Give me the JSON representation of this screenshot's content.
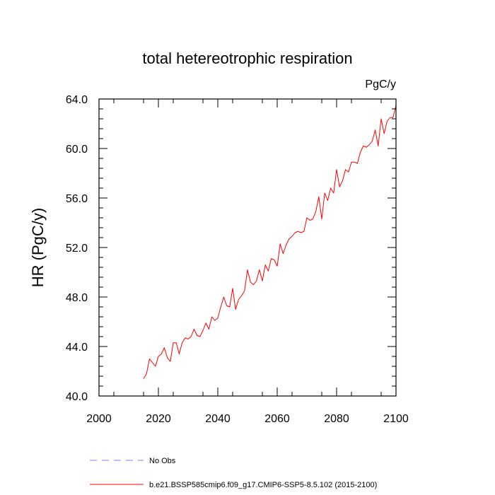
{
  "chart_data": {
    "type": "line",
    "title": "total hetereotrophic respiration",
    "units": "PgC/y",
    "xlabel": "",
    "ylabel": "HR  (PgC/y)",
    "xlim": [
      2000,
      2100
    ],
    "ylim": [
      40.0,
      64.0
    ],
    "xticks": [
      2000,
      2020,
      2040,
      2060,
      2080,
      2100
    ],
    "xtick_labels": [
      "2000",
      "2020",
      "2040",
      "2060",
      "2080",
      "2100"
    ],
    "yticks": [
      40.0,
      44.0,
      48.0,
      52.0,
      56.0,
      60.0,
      64.0
    ],
    "ytick_labels": [
      "40.0",
      "44.0",
      "48.0",
      "52.0",
      "56.0",
      "60.0",
      "64.0"
    ],
    "grid": false,
    "series": [
      {
        "name": "b.e21.BSSP585cmip6.f09_g17.CMIP6-SSP5-8.5.102 (2015-2100)",
        "color": "#ff0000",
        "style": "solid",
        "x": [
          2015,
          2016,
          2017,
          2018,
          2019,
          2020,
          2021,
          2022,
          2023,
          2024,
          2025,
          2026,
          2027,
          2028,
          2029,
          2030,
          2031,
          2032,
          2033,
          2034,
          2035,
          2036,
          2037,
          2038,
          2039,
          2040,
          2041,
          2042,
          2043,
          2044,
          2045,
          2046,
          2047,
          2048,
          2049,
          2050,
          2051,
          2052,
          2053,
          2054,
          2055,
          2056,
          2057,
          2058,
          2059,
          2060,
          2061,
          2062,
          2063,
          2064,
          2065,
          2066,
          2067,
          2068,
          2069,
          2070,
          2071,
          2072,
          2073,
          2074,
          2075,
          2076,
          2077,
          2078,
          2079,
          2080,
          2081,
          2082,
          2083,
          2084,
          2085,
          2086,
          2087,
          2088,
          2089,
          2090,
          2091,
          2092,
          2093,
          2094,
          2095,
          2096,
          2097,
          2098,
          2099,
          2100
        ],
        "values": [
          41.4,
          41.8,
          43.0,
          42.7,
          42.4,
          43.2,
          43.4,
          43.9,
          43.1,
          42.8,
          44.3,
          44.3,
          43.4,
          44.3,
          44.7,
          44.6,
          44.8,
          45.4,
          44.9,
          44.8,
          45.3,
          45.9,
          45.4,
          46.4,
          46.1,
          46.3,
          47.2,
          48.0,
          47.3,
          47.2,
          48.7,
          47.0,
          47.8,
          48.1,
          48.5,
          50.2,
          49.2,
          49.0,
          49.3,
          50.2,
          49.3,
          50.6,
          50.1,
          51.1,
          51.0,
          50.5,
          52.3,
          51.5,
          52.2,
          52.7,
          52.9,
          53.2,
          53.3,
          53.2,
          53.3,
          54.4,
          54.2,
          54.3,
          54.9,
          56.1,
          54.3,
          56.4,
          55.8,
          56.8,
          56.4,
          58.3,
          56.9,
          57.4,
          58.3,
          58.1,
          58.9,
          58.9,
          58.8,
          59.7,
          60.2,
          60.1,
          60.3,
          60.6,
          61.5,
          60.2,
          62.4,
          61.2,
          62.2,
          62.5,
          62.5,
          63.5
        ]
      },
      {
        "name": "No Obs",
        "color": "#7f7fff",
        "style": "dashed",
        "x": [],
        "values": []
      }
    ],
    "legend": "bottom-left"
  }
}
